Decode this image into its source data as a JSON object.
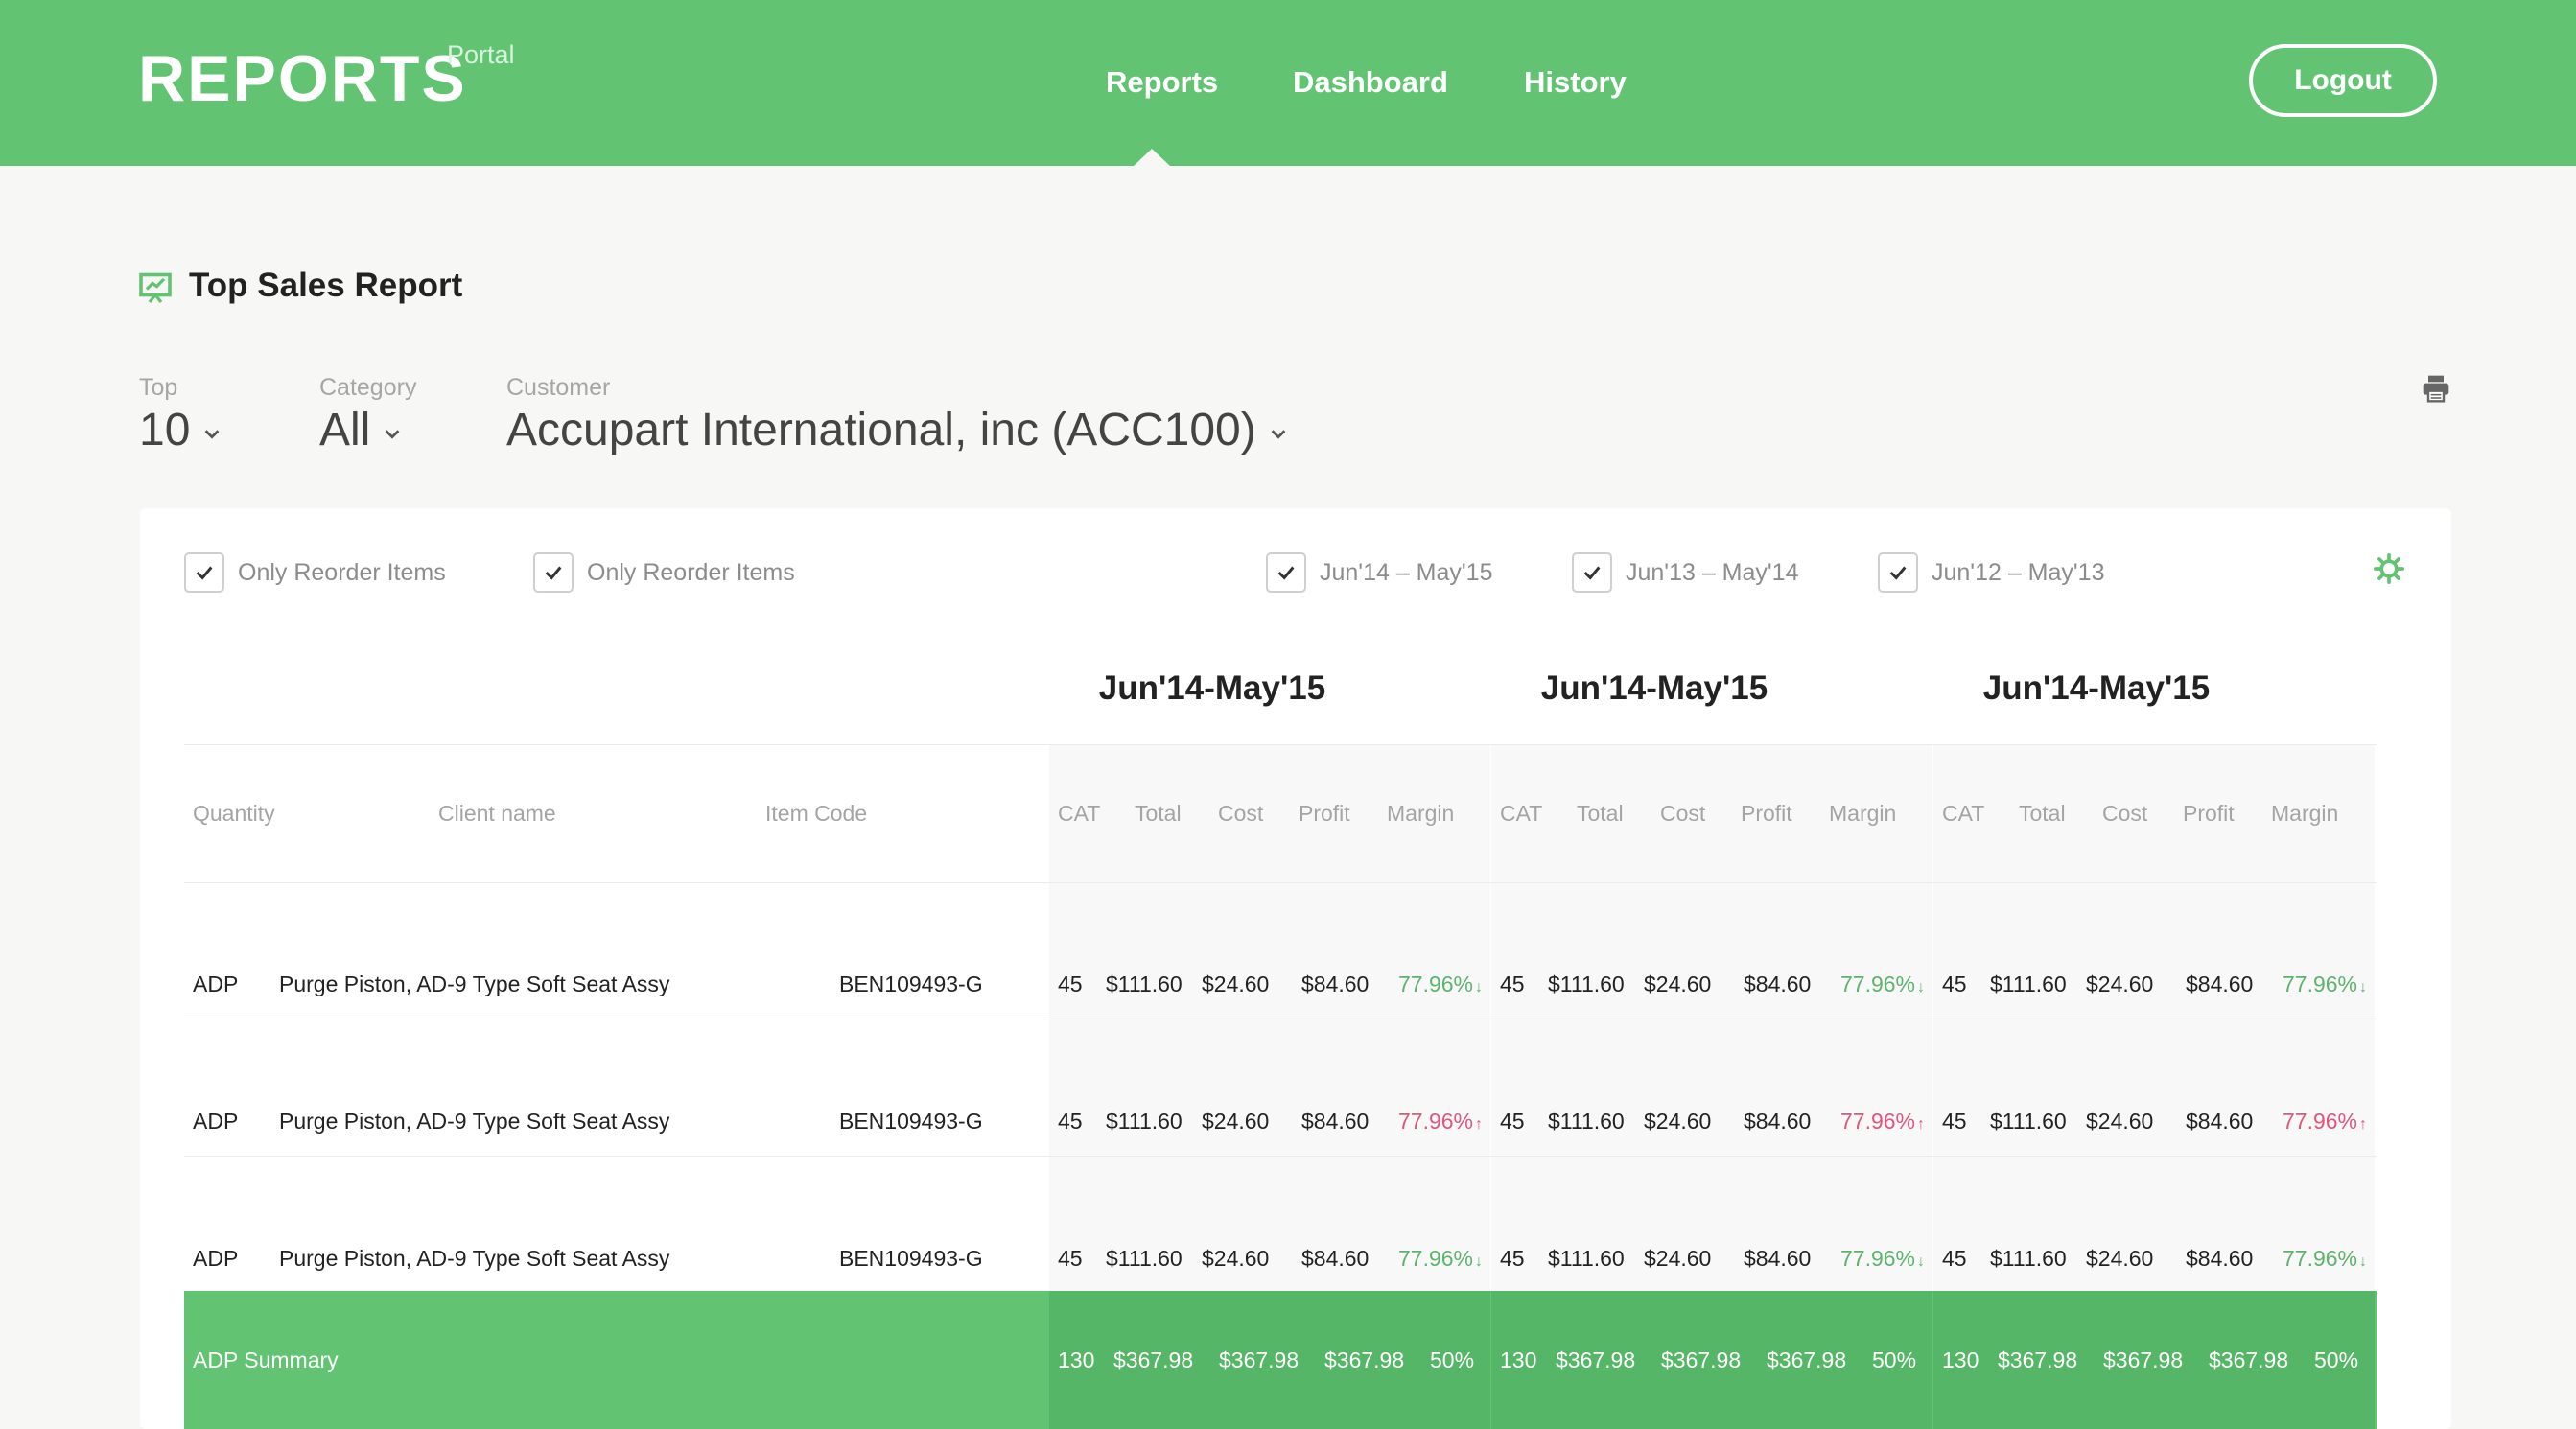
{
  "header": {
    "brand_title": "REPORTS",
    "brand_sub": "Portal",
    "nav": [
      "Reports",
      "Dashboard",
      "History"
    ],
    "active_nav": "Reports",
    "logout_label": "Logout",
    "bg_color": "#62c473"
  },
  "report": {
    "title": "Top Sales Report",
    "icon": "presentation-chart-icon"
  },
  "filters": {
    "top": {
      "label": "Top",
      "value": "10"
    },
    "category": {
      "label": "Category",
      "value": "All"
    },
    "customer": {
      "label": "Customer",
      "value": "Accupart International, inc (ACC100)"
    }
  },
  "options": {
    "checkboxes": [
      {
        "label": "Only Reorder Items",
        "checked": true
      },
      {
        "label": "Only Reorder Items",
        "checked": true
      },
      {
        "label": "Jun'14 – May'15",
        "checked": true
      },
      {
        "label": "Jun'13 – May'14",
        "checked": true
      },
      {
        "label": "Jun'12 – May'13",
        "checked": true
      }
    ]
  },
  "table": {
    "base_columns": [
      "Quantity",
      "Client name",
      "Item Code"
    ],
    "group_columns": [
      "CAT",
      "Total",
      "Cost",
      "Profit",
      "Margin"
    ],
    "groups": [
      "Jun'14-May'15",
      "Jun'14-May'15",
      "Jun'14-May'15"
    ],
    "rows": [
      {
        "quantity": "ADP",
        "client": "Purge Piston, AD-9 Type Soft Seat Assy",
        "item_code": "BEN109493-G",
        "margin_trend": "down",
        "groups": [
          {
            "cat": "45",
            "total": "$111.60",
            "cost": "$24.60",
            "profit": "$84.60",
            "margin": "77.96%"
          },
          {
            "cat": "45",
            "total": "$111.60",
            "cost": "$24.60",
            "profit": "$84.60",
            "margin": "77.96%"
          },
          {
            "cat": "45",
            "total": "$111.60",
            "cost": "$24.60",
            "profit": "$84.60",
            "margin": "77.96%"
          }
        ]
      },
      {
        "quantity": "ADP",
        "client": "Purge Piston, AD-9 Type Soft Seat Assy",
        "item_code": "BEN109493-G",
        "margin_trend": "up",
        "groups": [
          {
            "cat": "45",
            "total": "$111.60",
            "cost": "$24.60",
            "profit": "$84.60",
            "margin": "77.96%"
          },
          {
            "cat": "45",
            "total": "$111.60",
            "cost": "$24.60",
            "profit": "$84.60",
            "margin": "77.96%"
          },
          {
            "cat": "45",
            "total": "$111.60",
            "cost": "$24.60",
            "profit": "$84.60",
            "margin": "77.96%"
          }
        ]
      },
      {
        "quantity": "ADP",
        "client": "Purge Piston, AD-9 Type Soft Seat Assy",
        "item_code": "BEN109493-G",
        "margin_trend": "down",
        "groups": [
          {
            "cat": "45",
            "total": "$111.60",
            "cost": "$24.60",
            "profit": "$84.60",
            "margin": "77.96%"
          },
          {
            "cat": "45",
            "total": "$111.60",
            "cost": "$24.60",
            "profit": "$84.60",
            "margin": "77.96%"
          },
          {
            "cat": "45",
            "total": "$111.60",
            "cost": "$24.60",
            "profit": "$84.60",
            "margin": "77.96%"
          }
        ]
      }
    ],
    "summary": {
      "label": "ADP Summary",
      "groups": [
        {
          "cat": "130",
          "total": "$367.98",
          "cost": "$367.98",
          "profit": "$367.98",
          "margin": "50%"
        },
        {
          "cat": "130",
          "total": "$367.98",
          "cost": "$367.98",
          "profit": "$367.98",
          "margin": "50%"
        },
        {
          "cat": "130",
          "total": "$367.98",
          "cost": "$367.98",
          "profit": "$367.98",
          "margin": "50%"
        }
      ]
    },
    "colors": {
      "margin_down": "#5db36c",
      "margin_up": "#e2557a",
      "summary_bg": "#62c473"
    }
  }
}
